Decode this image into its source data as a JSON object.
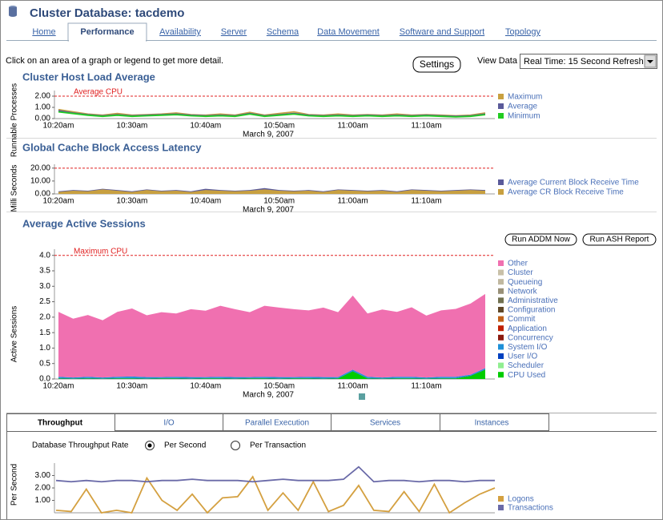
{
  "header": {
    "title": "Cluster Database: tacdemo"
  },
  "tabs": [
    "Home",
    "Performance",
    "Availability",
    "Server",
    "Schema",
    "Data Movement",
    "Software and Support",
    "Topology"
  ],
  "instruction": "Click on an area of a graph or legend to get more detail.",
  "settings_button": "Settings",
  "view_data": {
    "label": "View Data",
    "value": "Real Time: 15 Second Refresh"
  },
  "session_buttons": [
    "Run ADDM Now",
    "Run ASH Report"
  ],
  "chart_data": [
    {
      "type": "line",
      "title": "Cluster Host Load Average",
      "y_label": "Runnable Processes",
      "x_label": "March 9, 2007",
      "categories": [
        "10:20am",
        null,
        null,
        null,
        null,
        "10:30am",
        null,
        null,
        null,
        null,
        "10:40am",
        null,
        null,
        null,
        null,
        "10:50am",
        null,
        null,
        null,
        null,
        "11:00am",
        null,
        null,
        null,
        null,
        "11:10am",
        null,
        null,
        null,
        null
      ],
      "series": [
        {
          "name": "Maximum",
          "color": "#c8a040",
          "values": [
            0.8,
            0.6,
            0.4,
            0.3,
            0.45,
            0.3,
            0.35,
            0.4,
            0.5,
            0.35,
            0.3,
            0.4,
            0.3,
            0.55,
            0.3,
            0.45,
            0.6,
            0.35,
            0.3,
            0.4,
            0.3,
            0.35,
            0.3,
            0.4,
            0.3,
            0.35,
            0.3,
            0.25,
            0.3,
            0.5
          ]
        },
        {
          "name": "Average",
          "color": "#5a5a9a",
          "values": [
            0.7,
            0.5,
            0.35,
            0.25,
            0.35,
            0.25,
            0.3,
            0.35,
            0.4,
            0.3,
            0.25,
            0.3,
            0.25,
            0.45,
            0.25,
            0.35,
            0.45,
            0.3,
            0.25,
            0.3,
            0.25,
            0.3,
            0.25,
            0.3,
            0.25,
            0.3,
            0.25,
            0.2,
            0.25,
            0.4
          ]
        },
        {
          "name": "Minimum",
          "color": "#22cc22",
          "values": [
            0.6,
            0.45,
            0.3,
            0.2,
            0.3,
            0.2,
            0.25,
            0.3,
            0.35,
            0.25,
            0.2,
            0.25,
            0.2,
            0.4,
            0.2,
            0.3,
            0.4,
            0.25,
            0.2,
            0.25,
            0.2,
            0.25,
            0.2,
            0.25,
            0.2,
            0.25,
            0.2,
            0.15,
            0.2,
            0.35
          ]
        }
      ],
      "ylim": [
        0,
        2.5
      ],
      "yticks": [
        {
          "value": 0,
          "label": "0.00"
        },
        {
          "value": 1,
          "label": "1.00"
        },
        {
          "value": 2,
          "label": "2.00"
        }
      ],
      "reference_line": {
        "value": 2,
        "label": "Average CPU",
        "color": "#e02020"
      },
      "legend": "right"
    },
    {
      "type": "area",
      "stacked": false,
      "title": "Global Cache Block Access Latency",
      "y_label": "Milli Seconds",
      "x_label": "March 9, 2007",
      "categories": [
        "10:20am",
        null,
        null,
        null,
        null,
        "10:30am",
        null,
        null,
        null,
        null,
        "10:40am",
        null,
        null,
        null,
        null,
        "10:50am",
        null,
        null,
        null,
        null,
        "11:00am",
        null,
        null,
        null,
        null,
        "11:10am",
        null,
        null,
        null,
        null
      ],
      "series": [
        {
          "name": "Average Current Block Receive Time",
          "color": "#5a5a9a",
          "values": [
            2,
            3,
            2.5,
            4,
            3,
            2,
            3.5,
            2.5,
            3,
            2,
            4,
            3,
            2.5,
            3,
            4.5,
            3,
            2.5,
            3,
            2,
            3.5,
            3,
            2.5,
            3,
            2,
            3.5,
            3,
            2.5,
            3,
            3.5,
            3
          ]
        },
        {
          "name": "Average CR Block Receive Time",
          "color": "#c8a040",
          "values": [
            1.5,
            2.5,
            2,
            3.5,
            2.5,
            1.5,
            3,
            2,
            2.5,
            1.5,
            3,
            2.5,
            2,
            2.5,
            3.5,
            2.5,
            2,
            2.5,
            1.5,
            3,
            2.5,
            2,
            2.5,
            1.5,
            3,
            2.5,
            2,
            2.5,
            3,
            2.5
          ]
        }
      ],
      "ylim": [
        0,
        23
      ],
      "yticks": [
        {
          "value": 0,
          "label": "0.00"
        },
        {
          "value": 10,
          "label": "10.00"
        },
        {
          "value": 20,
          "label": "20.00"
        }
      ],
      "reference_line": {
        "value": 20,
        "color": "#e02020"
      },
      "legend": "right"
    },
    {
      "type": "area",
      "stacked": true,
      "title": "Average Active Sessions",
      "y_label": "Active Sessions",
      "x_label": "March 9, 2007",
      "categories": [
        "10:20am",
        null,
        null,
        null,
        null,
        "10:30am",
        null,
        null,
        null,
        null,
        "10:40am",
        null,
        null,
        null,
        null,
        "10:50am",
        null,
        null,
        null,
        null,
        "11:00am",
        null,
        null,
        null,
        null,
        "11:10am",
        null,
        null,
        null,
        null
      ],
      "series": [
        {
          "name": "Other",
          "color": "#f070b0",
          "values": [
            2.1,
            1.9,
            2.0,
            1.85,
            2.1,
            2.2,
            2.0,
            2.1,
            2.05,
            2.2,
            2.15,
            2.3,
            2.2,
            2.1,
            2.3,
            2.25,
            2.2,
            2.15,
            2.25,
            2.1,
            2.4,
            2.05,
            2.2,
            2.1,
            2.25,
            2.0,
            2.15,
            2.2,
            2.3,
            2.4
          ]
        },
        {
          "name": "Cluster",
          "color": "#c8c0a8",
          "values": [
            0,
            0,
            0,
            0,
            0,
            0,
            0,
            0,
            0,
            0,
            0,
            0,
            0,
            0,
            0,
            0,
            0,
            0,
            0,
            0,
            0,
            0,
            0,
            0,
            0,
            0,
            0,
            0,
            0,
            0
          ]
        },
        {
          "name": "Queueing",
          "color": "#c0b8a0",
          "values": [
            0,
            0,
            0,
            0,
            0,
            0,
            0,
            0,
            0,
            0,
            0,
            0,
            0,
            0,
            0,
            0,
            0,
            0,
            0,
            0,
            0,
            0,
            0,
            0,
            0,
            0,
            0,
            0,
            0,
            0
          ]
        },
        {
          "name": "Network",
          "color": "#989078",
          "values": [
            0,
            0,
            0,
            0,
            0,
            0,
            0,
            0,
            0,
            0,
            0,
            0,
            0,
            0,
            0,
            0,
            0,
            0,
            0,
            0,
            0,
            0,
            0,
            0,
            0,
            0,
            0,
            0,
            0,
            0
          ]
        },
        {
          "name": "Administrative",
          "color": "#707050",
          "values": [
            0,
            0,
            0,
            0,
            0,
            0,
            0,
            0,
            0,
            0,
            0,
            0,
            0,
            0,
            0,
            0,
            0,
            0,
            0,
            0,
            0,
            0,
            0,
            0,
            0,
            0,
            0,
            0,
            0,
            0
          ]
        },
        {
          "name": "Configuration",
          "color": "#604828",
          "values": [
            0,
            0,
            0,
            0,
            0,
            0,
            0,
            0,
            0,
            0,
            0,
            0,
            0,
            0,
            0,
            0,
            0,
            0,
            0,
            0,
            0,
            0,
            0,
            0,
            0,
            0,
            0,
            0,
            0,
            0
          ]
        },
        {
          "name": "Commit",
          "color": "#c06018",
          "values": [
            0,
            0,
            0,
            0,
            0,
            0,
            0,
            0,
            0,
            0,
            0,
            0,
            0,
            0,
            0,
            0,
            0,
            0,
            0,
            0,
            0,
            0,
            0,
            0,
            0,
            0,
            0,
            0,
            0,
            0
          ]
        },
        {
          "name": "Application",
          "color": "#c02000",
          "values": [
            0,
            0,
            0,
            0,
            0,
            0,
            0,
            0,
            0,
            0,
            0,
            0,
            0,
            0,
            0,
            0,
            0,
            0,
            0,
            0,
            0,
            0,
            0,
            0,
            0,
            0,
            0,
            0,
            0,
            0
          ]
        },
        {
          "name": "Concurrency",
          "color": "#8b1a10",
          "values": [
            0,
            0,
            0,
            0,
            0,
            0,
            0,
            0,
            0,
            0,
            0,
            0,
            0,
            0,
            0,
            0,
            0,
            0,
            0,
            0,
            0,
            0,
            0,
            0,
            0,
            0,
            0,
            0,
            0,
            0
          ]
        },
        {
          "name": "System I/O",
          "color": "#1e90d8",
          "values": [
            0.04,
            0.03,
            0.04,
            0.03,
            0.04,
            0.05,
            0.04,
            0.03,
            0.04,
            0.04,
            0.03,
            0.04,
            0.04,
            0.03,
            0.04,
            0.04,
            0.03,
            0.04,
            0.04,
            0.03,
            0.04,
            0.04,
            0.03,
            0.04,
            0.04,
            0.03,
            0.04,
            0.04,
            0.03,
            0.04
          ]
        },
        {
          "name": "User I/O",
          "color": "#0040c0",
          "values": [
            0.01,
            0.01,
            0.01,
            0.01,
            0.01,
            0.01,
            0.01,
            0.01,
            0.01,
            0.01,
            0.01,
            0.01,
            0.01,
            0.01,
            0.01,
            0.01,
            0.01,
            0.01,
            0.01,
            0.01,
            0.01,
            0.01,
            0.01,
            0.01,
            0.01,
            0.01,
            0.01,
            0.01,
            0.01,
            0.01
          ]
        },
        {
          "name": "Scheduler",
          "color": "#90ee90",
          "values": [
            0,
            0,
            0,
            0,
            0,
            0,
            0,
            0,
            0,
            0,
            0,
            0,
            0,
            0,
            0,
            0,
            0,
            0,
            0,
            0,
            0,
            0,
            0,
            0,
            0,
            0,
            0,
            0,
            0,
            0
          ]
        },
        {
          "name": "CPU Used",
          "color": "#00cc00",
          "values": [
            0.02,
            0.01,
            0.02,
            0.01,
            0.02,
            0.02,
            0.01,
            0.02,
            0.02,
            0.01,
            0.02,
            0.02,
            0.01,
            0.02,
            0.02,
            0.01,
            0.02,
            0.02,
            0.01,
            0.02,
            0.25,
            0.02,
            0.01,
            0.02,
            0.02,
            0.01,
            0.02,
            0.02,
            0.1,
            0.3
          ]
        }
      ],
      "ylim": [
        0,
        4.2
      ],
      "yticks": [
        {
          "value": 0,
          "label": "0.0"
        },
        0.5,
        {
          "value": 1,
          "label": "1.0"
        },
        1.5,
        {
          "value": 2,
          "label": "2.0"
        },
        2.5,
        {
          "value": 3,
          "label": "3.0"
        },
        3.5,
        {
          "value": 4,
          "label": "4.0"
        }
      ],
      "reference_line": {
        "value": 4,
        "label": "Maximum CPU",
        "color": "#e02020"
      },
      "legend": "right"
    },
    {
      "type": "line",
      "y_label": "Per Second",
      "series": [
        {
          "name": "Logons",
          "color": "#d4a040",
          "values": [
            0.2,
            0.1,
            1.9,
            0,
            0.2,
            0,
            2.8,
            1.0,
            0.2,
            1.5,
            0,
            1.2,
            1.3,
            2.9,
            0.2,
            1.6,
            0.2,
            2.5,
            0.1,
            0.6,
            2.2,
            0.2,
            0.1,
            1.7,
            0.1,
            2.3,
            0,
            0.8,
            1.5,
            2.0
          ]
        },
        {
          "name": "Transactions",
          "color": "#6a6aa8",
          "values": [
            2.6,
            2.5,
            2.6,
            2.5,
            2.6,
            2.6,
            2.5,
            2.6,
            2.6,
            2.7,
            2.6,
            2.6,
            2.6,
            2.5,
            2.6,
            2.7,
            2.6,
            2.6,
            2.6,
            2.7,
            3.7,
            2.5,
            2.6,
            2.6,
            2.5,
            2.6,
            2.6,
            2.5,
            2.6,
            2.6
          ]
        }
      ],
      "ylim": [
        0,
        4
      ],
      "yticks": [
        {
          "value": 1,
          "label": "1.00"
        },
        {
          "value": 2,
          "label": "2.00"
        },
        {
          "value": 3,
          "label": "3.00"
        }
      ],
      "legend": "right"
    }
  ],
  "detail_tabs": [
    "Throughput",
    "I/O",
    "Parallel Execution",
    "Services",
    "Instances"
  ],
  "throughput": {
    "label": "Database Throughput Rate",
    "options": [
      "Per Second",
      "Per Transaction"
    ]
  }
}
